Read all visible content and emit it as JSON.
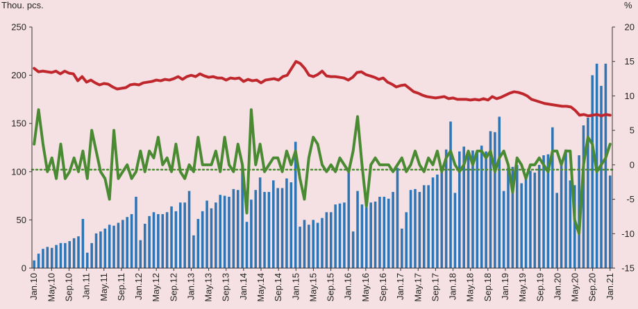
{
  "chart_data": {
    "type": "bar+line",
    "title": "",
    "left_unit": "Thou. pcs.",
    "right_unit": "%",
    "left_axis": {
      "min": 0,
      "max": 250,
      "ticks": [
        "0",
        "50",
        "100",
        "150",
        "200",
        "250"
      ]
    },
    "right_axis": {
      "min": -15,
      "max": 20,
      "ticks": [
        "-15",
        "-10",
        "-5",
        "0",
        "5",
        "10",
        "15",
        "20"
      ]
    },
    "x_tick_labels": [
      "Jan.10",
      "May.10",
      "Sep.10",
      "Jan.11",
      "May.11",
      "Sep.11",
      "Jan.12",
      "May.12",
      "Sep.12",
      "Jan.13",
      "May.13",
      "Sep.13",
      "Jan.14",
      "May.14",
      "Sep.14",
      "Jan.15",
      "May.15",
      "Sep.15",
      "Jan.16",
      "May.16",
      "Sep.16",
      "Jan.17",
      "May.17",
      "Sep.17",
      "Jan.18",
      "May.18",
      "Sep.18",
      "Jan.19",
      "May.19",
      "Sep.19",
      "Jan.20",
      "May.20",
      "Sep.20",
      "Jan.21"
    ],
    "grid": false,
    "legend": "none",
    "colors": {
      "bars": "#2e75b6",
      "red_line": "#c0272d",
      "green_line": "#4a8a32",
      "green_dotted": "#4a8a32",
      "background": "#f5e1e3"
    },
    "series": [
      {
        "axis": "left",
        "kind": "bar",
        "values": [
          8,
          15,
          20,
          22,
          21,
          24,
          26,
          26,
          28,
          31,
          33,
          51,
          16,
          26,
          36,
          38,
          41,
          45,
          44,
          47,
          50,
          53,
          56,
          74,
          29,
          46,
          54,
          58,
          56,
          56,
          58,
          64,
          59,
          68,
          68,
          80,
          34,
          51,
          59,
          70,
          62,
          68,
          76,
          75,
          74,
          82,
          81,
          108,
          48,
          71,
          81,
          94,
          79,
          79,
          91,
          83,
          83,
          93,
          89,
          131,
          43,
          50,
          45,
          50,
          47,
          52,
          58,
          58,
          66,
          67,
          68,
          104,
          38,
          80,
          66,
          63,
          68,
          69,
          74,
          74,
          72,
          79,
          104,
          41,
          58,
          81,
          82,
          79,
          86,
          86,
          94,
          97,
          102,
          123,
          152,
          78,
          121,
          126,
          121,
          122,
          121,
          127,
          121,
          142,
          141,
          157,
          80,
          104,
          105,
          107,
          88,
          97,
          101,
          99,
          107,
          117,
          118,
          146,
          78,
          108,
          123,
          91,
          86,
          117,
          148,
          156,
          200,
          212,
          189,
          212,
          96
        ],
        "start": "Jan.10",
        "end": "Jan.21"
      },
      {
        "axis": "right",
        "kind": "line",
        "values": [
          14,
          13.5,
          13.6,
          13.5,
          13.4,
          13.6,
          13.2,
          13.6,
          13.3,
          13.2,
          12.2,
          12.8,
          12,
          12.3,
          11.9,
          11.6,
          11.8,
          11.7,
          11.3,
          11,
          11.1,
          11.2,
          11.6,
          11.7,
          11.6,
          11.9,
          12,
          12.1,
          12.3,
          12.2,
          12.4,
          12.3,
          12.5,
          12.8,
          12.4,
          12.8,
          13,
          12.8,
          13.2,
          12.9,
          12.7,
          12.8,
          12.6,
          12.6,
          12.3,
          12.6,
          12.5,
          12.6,
          12.1,
          12.4,
          12.2,
          12.3,
          11.9,
          12.3,
          12.4,
          12.5,
          12.3,
          12.8,
          13,
          14,
          15,
          14.7,
          14,
          13,
          12.8,
          13.1,
          13.6,
          12.9,
          12.8,
          12.8,
          12.7,
          12.6,
          12.3,
          12.7,
          13.4,
          13.5,
          13.1,
          12.9,
          12.7,
          12.4,
          12.6,
          12,
          11.7,
          11.3,
          11.5,
          11.6,
          11.1,
          10.6,
          10.4,
          10.1,
          9.9,
          9.8,
          9.7,
          9.8,
          9.9,
          9.6,
          9.7,
          9.5,
          9.5,
          9.5,
          9.4,
          9.5,
          9.4,
          9.6,
          9.4,
          9.9,
          9.6,
          9.8,
          10.1,
          10.4,
          10.6,
          10.5,
          10.3,
          10,
          9.5,
          9.3,
          9.1,
          8.9,
          8.8,
          8.7,
          8.6,
          8.5,
          8.5,
          8.4,
          7.9,
          7.2,
          7.3,
          7.1,
          7.2,
          7.3,
          7.1,
          7.3,
          7.2
        ],
        "start": "Jan.10",
        "end": "Jan.21"
      },
      {
        "axis": "right",
        "kind": "line",
        "values": [
          3,
          8,
          3,
          -1,
          1,
          -2,
          3,
          -2,
          -1,
          1,
          -1,
          2,
          -2,
          5,
          2,
          -1,
          -2,
          -5,
          5,
          -2,
          -1,
          0,
          -2,
          -1,
          2,
          -1,
          2,
          1,
          4,
          0,
          1,
          -1,
          3,
          -1,
          -2,
          0,
          -1,
          4,
          0,
          0,
          0,
          2,
          -1,
          4,
          0,
          -1,
          3,
          0,
          -7,
          8,
          0,
          3,
          -1,
          0,
          1,
          1,
          -1,
          2,
          0,
          2,
          -2,
          -5,
          1,
          4,
          3,
          0,
          -1,
          0,
          -1,
          1,
          0,
          -1,
          2,
          7,
          0,
          -6,
          0,
          1,
          0,
          0,
          0,
          -1,
          0,
          1,
          -1,
          0,
          2,
          0,
          -1,
          1,
          0,
          2,
          -1,
          1,
          2,
          0,
          -1,
          0,
          2,
          0,
          2,
          2,
          1,
          2,
          -1,
          1,
          2,
          0,
          -4,
          1,
          0,
          -2,
          0,
          0,
          1,
          0,
          -1,
          2,
          2,
          0,
          2,
          2,
          -8,
          -10,
          0,
          4,
          3,
          -1,
          0,
          1,
          3
        ],
        "start": "Jan.10",
        "end": "Jan.21"
      },
      {
        "axis": "right",
        "kind": "dotted_line",
        "values": [
          -0.7
        ],
        "start": "Jan.10",
        "end": "Jan.21"
      }
    ]
  }
}
